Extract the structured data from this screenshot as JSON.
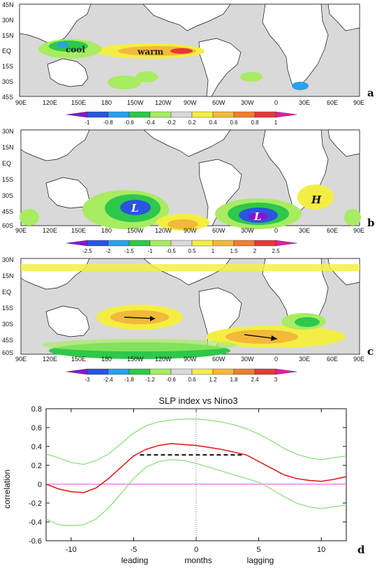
{
  "maps": {
    "lon_labels": [
      "90E",
      "120E",
      "150E",
      "180",
      "150W",
      "120W",
      "90W",
      "60W",
      "30W",
      "0",
      "30E",
      "60E",
      "90E"
    ],
    "a": {
      "panel_label": "a",
      "lat_labels": [
        "45N",
        "30N",
        "15N",
        "EQ",
        "15S",
        "30S",
        "45S"
      ],
      "colorbar": [
        "-1",
        "-0.8",
        "-0.6",
        "-0.4",
        "-0.2",
        "0.2",
        "0.4",
        "0.6",
        "0.8",
        "1"
      ],
      "annotations": [
        "cool",
        "warm"
      ]
    },
    "b": {
      "panel_label": "b",
      "lat_labels": [
        "30N",
        "15N",
        "EQ",
        "15S",
        "30S",
        "45S",
        "60S"
      ],
      "colorbar": [
        "-2.5",
        "-2",
        "-1.5",
        "-1",
        "-0.5",
        "0.5",
        "1",
        "1.5",
        "2",
        "2.5"
      ],
      "annotations": [
        "L",
        "L",
        "H"
      ]
    },
    "c": {
      "panel_label": "c",
      "lat_labels": [
        "30N",
        "15N",
        "EQ",
        "15S",
        "30S",
        "45S",
        "60S"
      ],
      "colorbar": [
        "-3",
        "-2.4",
        "-1.8",
        "-1.2",
        "-0.6",
        "0.6",
        "1.2",
        "1.8",
        "2.4",
        "3"
      ]
    },
    "colorbar_colors": [
      "#8a14d2",
      "#2a55e0",
      "#2aa0ea",
      "#2ec84a",
      "#a8ec62",
      "#d9d9d9",
      "#f4ee44",
      "#f2b93a",
      "#ef7e33",
      "#e83838",
      "#e51aa6"
    ],
    "land_color": "#ffffff",
    "ocean_color": "#d9d9d9"
  },
  "chart_data": {
    "type": "line",
    "title": "SLP index vs Nino3",
    "xlabel": "months",
    "ylabel": "correlation",
    "xlim": [
      -12,
      12
    ],
    "ylim": [
      -0.6,
      0.8
    ],
    "xticks": [
      -10,
      -5,
      0,
      5,
      10
    ],
    "yticks": [
      -0.6,
      -0.4,
      -0.2,
      0,
      0.2,
      0.4,
      0.6,
      0.8
    ],
    "xtick_labels": [
      "-10",
      "-5",
      "0",
      "5",
      "10"
    ],
    "ytick_labels": [
      "-0.6",
      "-0.4",
      "-0.2",
      "0",
      "0.2",
      "0.4",
      "0.6",
      "0.8"
    ],
    "annotations": [
      "leading",
      "lagging"
    ],
    "panel_label": "d",
    "x": [
      -12,
      -11,
      -10,
      -9,
      -8,
      -7,
      -6,
      -5,
      -4,
      -3,
      -2,
      -1,
      0,
      1,
      2,
      3,
      4,
      5,
      6,
      7,
      8,
      9,
      10,
      11,
      12
    ],
    "series": [
      {
        "color": "#e02020",
        "values": [
          0.0,
          -0.05,
          -0.08,
          -0.09,
          -0.04,
          0.06,
          0.18,
          0.3,
          0.37,
          0.41,
          0.43,
          0.42,
          0.41,
          0.39,
          0.37,
          0.34,
          0.31,
          0.24,
          0.17,
          0.1,
          0.06,
          0.04,
          0.03,
          0.05,
          0.08
        ]
      },
      {
        "color": "#7ddc6a",
        "values": [
          0.32,
          0.28,
          0.23,
          0.21,
          0.25,
          0.32,
          0.43,
          0.54,
          0.62,
          0.66,
          0.68,
          0.69,
          0.69,
          0.68,
          0.66,
          0.63,
          0.59,
          0.53,
          0.46,
          0.38,
          0.32,
          0.28,
          0.26,
          0.28,
          0.3
        ]
      },
      {
        "color": "#7ddc6a",
        "values": [
          -0.37,
          -0.43,
          -0.44,
          -0.43,
          -0.37,
          -0.25,
          -0.1,
          0.06,
          0.18,
          0.24,
          0.26,
          0.25,
          0.22,
          0.18,
          0.14,
          0.1,
          0.06,
          0.02,
          -0.05,
          -0.13,
          -0.2,
          -0.24,
          -0.26,
          -0.24,
          -0.22
        ]
      }
    ],
    "reference_lines": [
      {
        "kind": "horizontal",
        "y": 0,
        "color": "#ff66ff"
      },
      {
        "kind": "vertical",
        "x": 0,
        "style": "dotted",
        "color": "#777777"
      },
      {
        "kind": "segment",
        "x": [
          -4.5,
          3.8
        ],
        "y": [
          0.31,
          0.31
        ],
        "style": "dashed",
        "color": "#111111"
      }
    ]
  }
}
